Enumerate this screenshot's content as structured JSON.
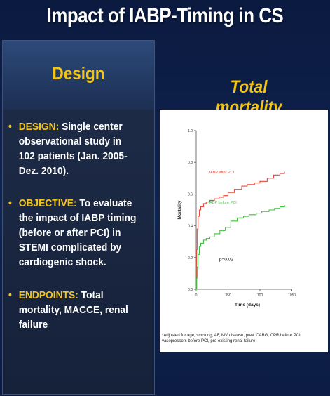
{
  "slide": {
    "title": "Impact of IABP-Timing in CS"
  },
  "design_panel": {
    "heading": "Design",
    "bullets": [
      {
        "keyword": "DESIGN:",
        "text": "Single center observational study in 102 patients (Jan. 2005-Dez. 2010)."
      },
      {
        "keyword": "OBJECTIVE:",
        "text": "To evaluate the impact of IABP timing (before or after PCI) in STEMI complicated by cardiogenic shock."
      },
      {
        "keyword": "ENDPOINTS:",
        "text": "Total mortality, MACCE, renal failure"
      }
    ]
  },
  "chart_panel": {
    "heading": "Total mortality",
    "footnote": "*Adjusted for age, smoking, AF, MV disease, prev. CABG, CPR before PCI, vasopressors before PCI, pre-existing renal failure"
  },
  "colors": {
    "background": "#0f2351",
    "accent": "#f3c515",
    "after_pci": "#e8473a",
    "before_pci": "#3fbf3f"
  },
  "chart_data": {
    "type": "line",
    "title": "Total mortality",
    "xlabel": "Time (days)",
    "ylabel": "Mortality",
    "xlim": [
      0,
      1000
    ],
    "ylim": [
      0,
      1.0
    ],
    "x_ticks": [
      0,
      350,
      700,
      1050
    ],
    "x_tick_labels": [
      "0",
      "350",
      "700",
      "1050"
    ],
    "y_ticks": [
      0,
      0.2,
      0.4,
      0.6,
      0.8,
      1.0
    ],
    "y_tick_labels": [
      "0.0",
      "0.2",
      "0.4",
      "0.6",
      "0.8",
      "1.0"
    ],
    "annotation": "p=0.02",
    "grid": false,
    "series": [
      {
        "name": "IABP after PCI",
        "color": "#e8473a",
        "x": [
          0,
          5,
          10,
          20,
          35,
          50,
          80,
          110,
          150,
          200,
          250,
          300,
          350,
          420,
          500,
          560,
          640,
          700,
          780,
          850,
          920,
          970
        ],
        "values": [
          0.0,
          0.25,
          0.38,
          0.46,
          0.5,
          0.52,
          0.54,
          0.55,
          0.56,
          0.57,
          0.58,
          0.59,
          0.61,
          0.63,
          0.65,
          0.66,
          0.67,
          0.68,
          0.7,
          0.72,
          0.73,
          0.74
        ]
      },
      {
        "name": "IABP before PCI",
        "color": "#3fbf3f",
        "x": [
          0,
          5,
          10,
          20,
          35,
          50,
          80,
          110,
          150,
          200,
          260,
          320,
          380,
          450,
          520,
          580,
          660,
          720,
          800,
          860,
          920,
          970
        ],
        "values": [
          0.0,
          0.07,
          0.14,
          0.22,
          0.27,
          0.29,
          0.31,
          0.32,
          0.33,
          0.35,
          0.37,
          0.39,
          0.43,
          0.45,
          0.46,
          0.47,
          0.48,
          0.49,
          0.5,
          0.51,
          0.52,
          0.53
        ]
      }
    ]
  }
}
